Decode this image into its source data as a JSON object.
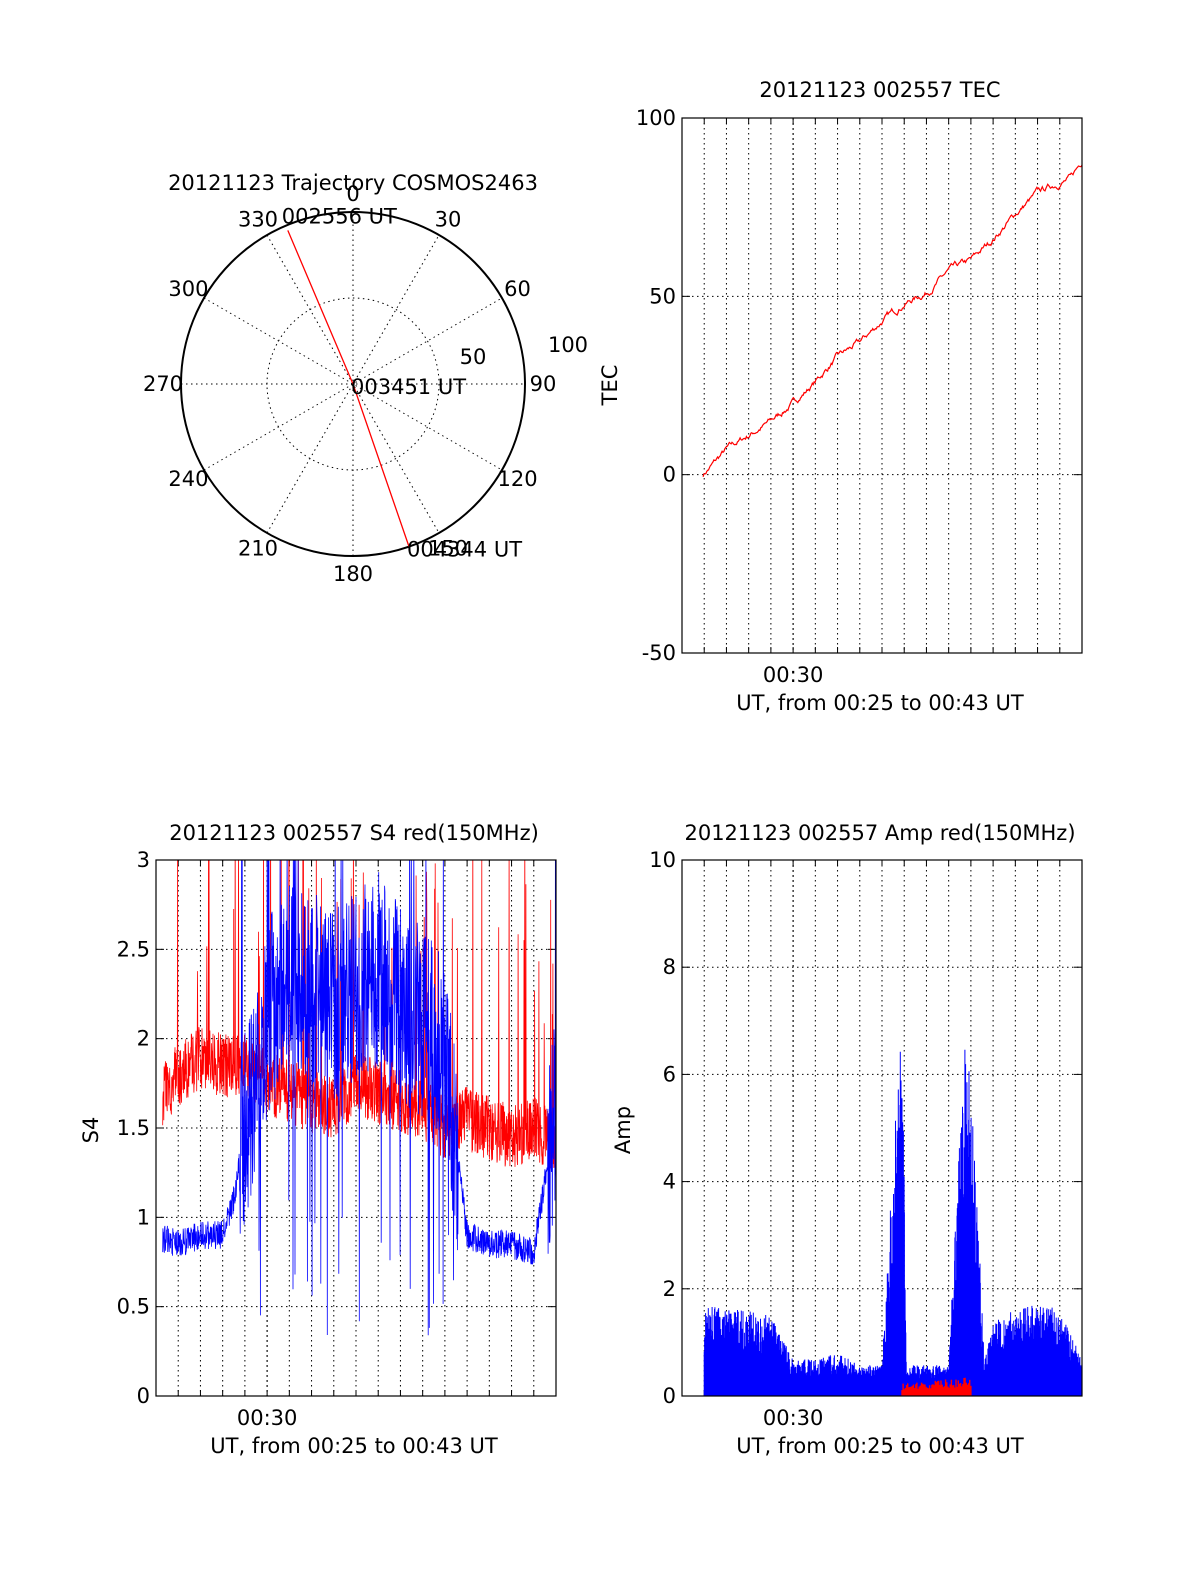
{
  "chart_data": [
    {
      "id": "trajectory",
      "type": "polar",
      "title": "20121123 Trajectory COSMOS2463",
      "azimuth_labels": [
        "0",
        "30",
        "60",
        "90",
        "120",
        "150",
        "180",
        "210",
        "240",
        "270",
        "300",
        "330"
      ],
      "radial_labels": [
        "50",
        "100"
      ],
      "rlim": [
        0,
        100
      ],
      "grid": true,
      "line_color": "#ff0000",
      "track": [
        {
          "label": "002556 UT",
          "azimuth": 337,
          "radius": 97
        },
        {
          "label": "003451 UT",
          "azimuth": 0,
          "radius": 0
        },
        {
          "label": "004344 UT",
          "azimuth": 161,
          "radius": 100
        }
      ]
    },
    {
      "id": "tec",
      "type": "line",
      "title": "20121123 002557 TEC",
      "xlabel": "UT, from 00:25 to 00:43 UT",
      "ylabel": "TEC",
      "xlim_minutes": [
        25,
        43
      ],
      "data_start_minutes": 25.95,
      "ylim": [
        -50,
        100
      ],
      "yticks": [
        "-50",
        "0",
        "50",
        "100"
      ],
      "xticks": [
        {
          "label": "00:30",
          "minute": 30
        }
      ],
      "grid": true,
      "series": [
        {
          "color": "#ff0000",
          "x": [
            25.95,
            27,
            28,
            29,
            30,
            31,
            32,
            33,
            34,
            35,
            36,
            37,
            38,
            39,
            40,
            41,
            42,
            42.5,
            43
          ],
          "y": [
            0,
            7,
            11,
            15,
            20,
            26,
            33,
            37,
            43,
            48,
            51,
            57,
            60,
            66,
            73,
            79,
            82,
            83,
            88
          ]
        }
      ]
    },
    {
      "id": "s4",
      "type": "line",
      "title": "20121123 002557 S4 red(150MHz)",
      "xlabel": "UT, from 00:25 to 00:43 UT",
      "ylabel": "S4",
      "xlim_minutes": [
        25,
        43
      ],
      "ylim": [
        0,
        3
      ],
      "yticks": [
        "0",
        "0.5",
        "1",
        "1.5",
        "2",
        "2.5",
        "3"
      ],
      "xticks": [
        {
          "label": "00:30",
          "minute": 30
        }
      ],
      "grid": true,
      "series": [
        {
          "color": "#ff0000",
          "x": [
            25,
            26,
            27,
            28,
            29,
            30,
            31,
            32,
            33,
            34,
            35,
            36,
            37,
            38,
            39,
            40,
            41,
            42,
            43
          ],
          "y": [
            1.65,
            1.8,
            1.9,
            1.85,
            1.85,
            1.75,
            1.7,
            1.65,
            1.6,
            1.75,
            1.7,
            1.65,
            1.6,
            1.5,
            1.55,
            1.5,
            1.45,
            1.5,
            1.4
          ]
        },
        {
          "color": "#0000ff",
          "x": [
            25,
            26,
            27,
            28,
            28.5,
            29,
            30,
            31,
            32,
            33,
            34,
            35,
            36,
            37,
            38,
            39,
            40,
            41,
            42,
            43
          ],
          "y": [
            0.9,
            0.85,
            0.9,
            0.9,
            1.1,
            1.5,
            2.1,
            2.4,
            2.3,
            2.2,
            2.3,
            2.4,
            2.2,
            2.1,
            1.9,
            0.9,
            0.85,
            0.85,
            0.8,
            1.6
          ]
        }
      ]
    },
    {
      "id": "amp",
      "type": "line",
      "title": "20121123 002557 Amp red(150MHz)",
      "xlabel": "UT, from 00:25 to 00:43 UT",
      "ylabel": "Amp",
      "xlim_minutes": [
        25,
        43
      ],
      "ylim": [
        0,
        10
      ],
      "yticks": [
        "0",
        "2",
        "4",
        "6",
        "8",
        "10"
      ],
      "xticks": [
        {
          "label": "00:30",
          "minute": 30
        }
      ],
      "grid": true,
      "series": [
        {
          "color": "#0000ff",
          "x": [
            26,
            27,
            28,
            29,
            30,
            31,
            32,
            33,
            34,
            34.9,
            35.1,
            36,
            37,
            37.7,
            38.0,
            38.6,
            39,
            40,
            41,
            42,
            43
          ],
          "y": [
            1.5,
            1.4,
            1.4,
            1.3,
            0.6,
            0.6,
            0.7,
            0.5,
            0.5,
            6.5,
            0.5,
            0.5,
            0.5,
            5.8,
            5.5,
            0.6,
            1.3,
            1.4,
            1.5,
            1.4,
            0.6
          ]
        },
        {
          "color": "#ff0000",
          "x": [
            34.9,
            37.7,
            37.8,
            37.9,
            38.0
          ],
          "y": [
            0.2,
            0.3,
            0.3,
            0.25,
            0.3
          ]
        }
      ]
    }
  ]
}
